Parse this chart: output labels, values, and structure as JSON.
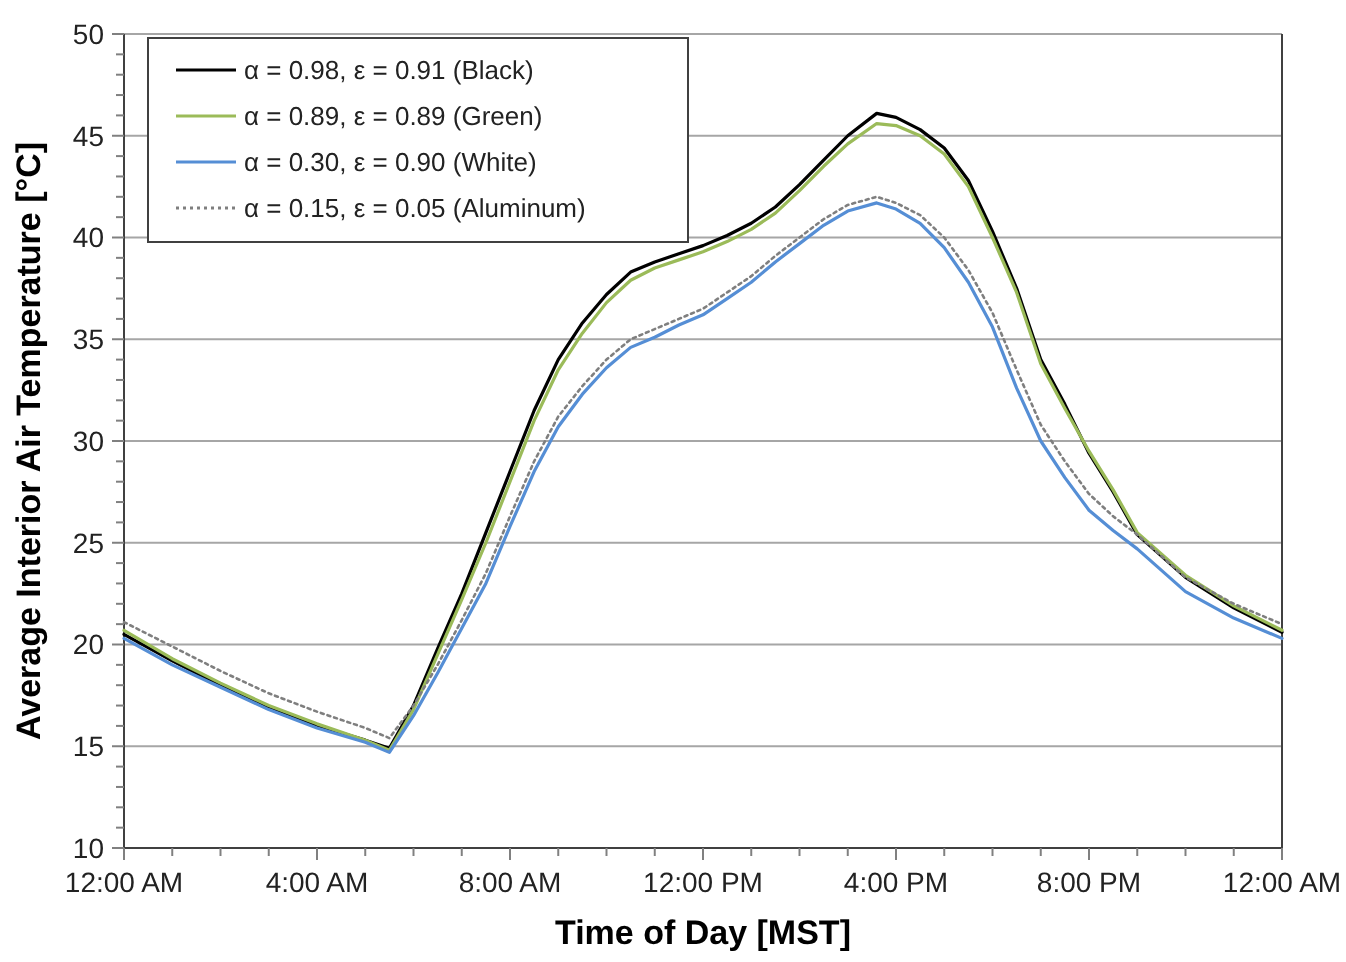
{
  "chart_data": {
    "type": "line",
    "xlabel": "Time of Day [MST]",
    "ylabel": "Average Interior Air Temperature [°C]",
    "x": [
      0,
      1,
      2,
      3,
      4,
      5,
      5.5,
      6,
      6.5,
      7,
      7.5,
      8,
      8.5,
      9,
      9.5,
      10,
      10.5,
      11,
      11.5,
      12,
      12.5,
      13,
      13.5,
      14,
      14.5,
      15,
      15.6,
      16,
      16.5,
      17,
      17.5,
      18,
      18.5,
      19,
      19.5,
      20,
      20.5,
      21,
      22,
      23,
      24
    ],
    "xlim": [
      0,
      24
    ],
    "xticks": [
      {
        "value": 0,
        "label": "12:00 AM"
      },
      {
        "value": 1,
        "label": null
      },
      {
        "value": 2,
        "label": null
      },
      {
        "value": 3,
        "label": null
      },
      {
        "value": 4,
        "label": "4:00 AM"
      },
      {
        "value": 5,
        "label": null
      },
      {
        "value": 6,
        "label": null
      },
      {
        "value": 7,
        "label": null
      },
      {
        "value": 8,
        "label": "8:00 AM"
      },
      {
        "value": 9,
        "label": null
      },
      {
        "value": 10,
        "label": null
      },
      {
        "value": 11,
        "label": null
      },
      {
        "value": 12,
        "label": "12:00 PM"
      },
      {
        "value": 13,
        "label": null
      },
      {
        "value": 14,
        "label": null
      },
      {
        "value": 15,
        "label": null
      },
      {
        "value": 16,
        "label": "4:00 PM"
      },
      {
        "value": 17,
        "label": null
      },
      {
        "value": 18,
        "label": null
      },
      {
        "value": 19,
        "label": null
      },
      {
        "value": 20,
        "label": "8:00 PM"
      },
      {
        "value": 21,
        "label": null
      },
      {
        "value": 22,
        "label": null
      },
      {
        "value": 23,
        "label": null
      },
      {
        "value": 24,
        "label": "12:00 AM"
      }
    ],
    "ylim": [
      10,
      50
    ],
    "yticks": [
      10,
      {
        "value": 11,
        "label": null
      },
      {
        "value": 12,
        "label": null
      },
      {
        "value": 13,
        "label": null
      },
      {
        "value": 14,
        "label": null
      },
      15,
      {
        "value": 16,
        "label": null
      },
      {
        "value": 17,
        "label": null
      },
      {
        "value": 18,
        "label": null
      },
      {
        "value": 19,
        "label": null
      },
      20,
      {
        "value": 21,
        "label": null
      },
      {
        "value": 22,
        "label": null
      },
      {
        "value": 23,
        "label": null
      },
      {
        "value": 24,
        "label": null
      },
      25,
      {
        "value": 26,
        "label": null
      },
      {
        "value": 27,
        "label": null
      },
      {
        "value": 28,
        "label": null
      },
      {
        "value": 29,
        "label": null
      },
      30,
      {
        "value": 31,
        "label": null
      },
      {
        "value": 32,
        "label": null
      },
      {
        "value": 33,
        "label": null
      },
      {
        "value": 34,
        "label": null
      },
      35,
      {
        "value": 36,
        "label": null
      },
      {
        "value": 37,
        "label": null
      },
      {
        "value": 38,
        "label": null
      },
      {
        "value": 39,
        "label": null
      },
      40,
      {
        "value": 41,
        "label": null
      },
      {
        "value": 42,
        "label": null
      },
      {
        "value": 43,
        "label": null
      },
      {
        "value": 44,
        "label": null
      },
      45,
      {
        "value": 46,
        "label": null
      },
      {
        "value": 47,
        "label": null
      },
      {
        "value": 48,
        "label": null
      },
      {
        "value": 49,
        "label": null
      },
      50
    ],
    "grid": "y",
    "legend": "top left",
    "marker": "none",
    "series": [
      {
        "name": "α = 0.98, ε = 0.91 (Black)",
        "color": "#000000",
        "line_style": "solid",
        "values": [
          20.5,
          19.2,
          18.0,
          16.9,
          16.0,
          15.3,
          14.9,
          17.0,
          19.8,
          22.5,
          25.5,
          28.5,
          31.5,
          34,
          35.8,
          37.2,
          38.3,
          38.8,
          39.2,
          39.6,
          40.1,
          40.7,
          41.5,
          42.6,
          43.8,
          45.0,
          46.1,
          45.9,
          45.3,
          44.4,
          42.8,
          40.3,
          37.5,
          34.0,
          31.8,
          29.4,
          27.5,
          25.4,
          23.3,
          21.8,
          20.6
        ]
      },
      {
        "name": "α = 0.89, ε = 0.89 (Green)",
        "color": "#9bbb59",
        "line_style": "solid",
        "values": [
          20.7,
          19.3,
          18.1,
          17.0,
          16.1,
          15.3,
          14.8,
          16.8,
          19.5,
          22.2,
          25.0,
          28.0,
          31.0,
          33.5,
          35.3,
          36.8,
          37.9,
          38.5,
          38.9,
          39.3,
          39.8,
          40.4,
          41.2,
          42.3,
          43.5,
          44.6,
          45.6,
          45.5,
          45.0,
          44.1,
          42.5,
          40.0,
          37.3,
          33.8,
          31.6,
          29.5,
          27.6,
          25.5,
          23.4,
          21.9,
          20.7
        ]
      },
      {
        "name": "α = 0.30, ε = 0.90 (White)",
        "color": "#558ed5",
        "line_style": "solid",
        "values": [
          20.3,
          19.0,
          17.9,
          16.8,
          15.9,
          15.2,
          14.7,
          16.5,
          18.6,
          20.8,
          23.0,
          25.8,
          28.5,
          30.7,
          32.3,
          33.6,
          34.6,
          35.1,
          35.7,
          36.2,
          37.0,
          37.8,
          38.8,
          39.7,
          40.6,
          41.3,
          41.7,
          41.4,
          40.7,
          39.5,
          37.8,
          35.6,
          32.6,
          30.0,
          28.2,
          26.6,
          25.6,
          24.7,
          22.6,
          21.3,
          20.3
        ]
      },
      {
        "name": "α = 0.15, ε = 0.05 (Aluminum)",
        "color": "#7f7f7f",
        "line_style": "dotted",
        "values": [
          21.1,
          19.9,
          18.7,
          17.6,
          16.7,
          15.9,
          15.4,
          17.0,
          19.0,
          21.2,
          23.5,
          26.3,
          29.0,
          31.2,
          32.7,
          34.0,
          35.0,
          35.5,
          36.0,
          36.5,
          37.3,
          38.1,
          39.1,
          40.0,
          40.9,
          41.6,
          42.0,
          41.7,
          41.1,
          40.0,
          38.4,
          36.3,
          33.5,
          30.8,
          29.0,
          27.4,
          26.3,
          25.4,
          23.3,
          22.0,
          21.0
        ]
      }
    ]
  }
}
